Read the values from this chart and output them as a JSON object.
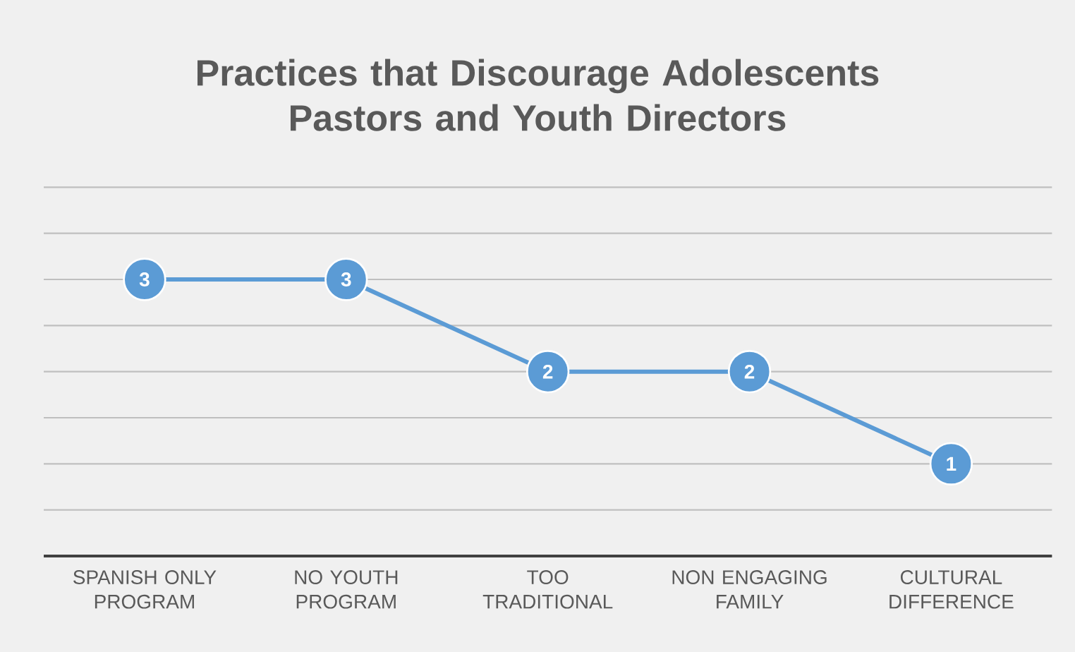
{
  "chart_data": {
    "type": "line",
    "title": "Practices that Discourage Adolescents Pastors and Youth Directors",
    "categories": [
      "SPANISH ONLY PROGRAM",
      "NO YOUTH PROGRAM",
      "TOO TRADITIONAL",
      "NON ENGAGING FAMILY",
      "CULTURAL DIFFERENCE"
    ],
    "values": [
      3,
      3,
      2,
      2,
      1
    ],
    "color": "#5b9bd5",
    "tick_labels": "x",
    "grid": "y",
    "marker": "circle",
    "line_style": "solid",
    "data_labels": true
  }
}
